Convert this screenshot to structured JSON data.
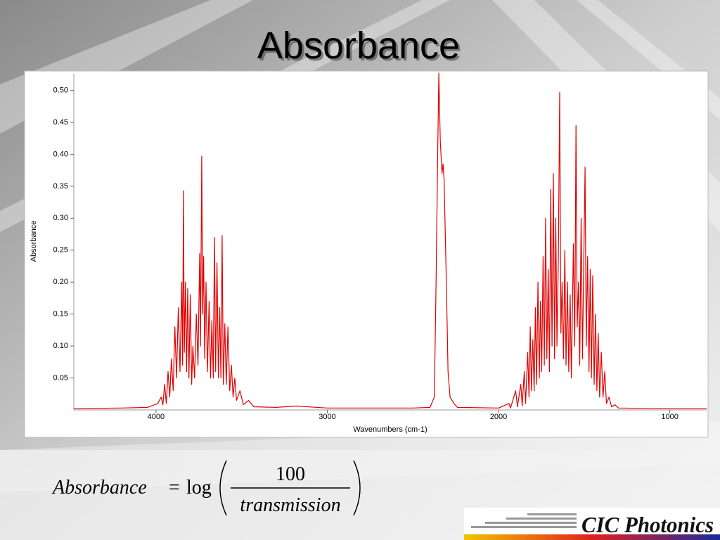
{
  "slide_title": "Absorbance",
  "formula": {
    "lhs": "Absorbance",
    "equals": "=",
    "func": "log",
    "numerator": "100",
    "denominator": "transmission"
  },
  "logo": "CIC Photonics",
  "chart_data": {
    "type": "line",
    "xlabel": "Wavenumbers (cm-1)",
    "ylabel": "Absorbance",
    "color": "#e00000",
    "xlim": [
      4480,
      785
    ],
    "ylim": [
      0,
      0.527
    ],
    "xticks": [
      4000,
      3000,
      2000,
      1000
    ],
    "yticks": [
      {
        "value": 0.05,
        "label": "0.05"
      },
      {
        "value": 0.1,
        "label": "0.10"
      },
      {
        "value": 0.15,
        "label": "0.15"
      },
      {
        "value": 0.2,
        "label": "0.20"
      },
      {
        "value": 0.25,
        "label": "0.25"
      },
      {
        "value": 0.3,
        "label": "0.30"
      },
      {
        "value": 0.35,
        "label": "0.35"
      },
      {
        "value": 0.4,
        "label": "0.40"
      },
      {
        "value": 0.45,
        "label": "0.45"
      },
      {
        "value": 0.5,
        "label": "0.50"
      }
    ],
    "x": [
      4480,
      4200,
      4050,
      3990,
      3970,
      3960,
      3950,
      3940,
      3930,
      3920,
      3910,
      3900,
      3890,
      3880,
      3870,
      3860,
      3850,
      3845,
      3840,
      3835,
      3828,
      3822,
      3815,
      3808,
      3800,
      3792,
      3785,
      3775,
      3765,
      3755,
      3745,
      3740,
      3733,
      3728,
      3722,
      3716,
      3708,
      3700,
      3690,
      3682,
      3674,
      3666,
      3659,
      3652,
      3644,
      3636,
      3628,
      3621,
      3614,
      3607,
      3598,
      3590,
      3580,
      3570,
      3560,
      3550,
      3540,
      3530,
      3510,
      3490,
      3460,
      3430,
      3300,
      3180,
      3000,
      2500,
      2400,
      2375,
      2365,
      2355,
      2349,
      2340,
      2330,
      2324,
      2318,
      2305,
      2295,
      2283,
      2260,
      2240,
      2000,
      1940,
      1930,
      1900,
      1890,
      1870,
      1862,
      1850,
      1842,
      1830,
      1822,
      1815,
      1808,
      1800,
      1792,
      1785,
      1778,
      1770,
      1762,
      1755,
      1748,
      1740,
      1733,
      1725,
      1718,
      1710,
      1703,
      1695,
      1688,
      1680,
      1673,
      1666,
      1659,
      1651,
      1643,
      1636,
      1629,
      1621,
      1613,
      1606,
      1598,
      1590,
      1582,
      1575,
      1563,
      1555,
      1548,
      1541,
      1533,
      1526,
      1518,
      1510,
      1495,
      1488,
      1480,
      1472,
      1465,
      1458,
      1450,
      1442,
      1434,
      1426,
      1418,
      1410,
      1400,
      1390,
      1380,
      1370,
      1355,
      1340,
      1320,
      1300,
      1000,
      785
    ],
    "values": [
      0.002,
      0.003,
      0.004,
      0.01,
      0.02,
      0.008,
      0.04,
      0.01,
      0.06,
      0.02,
      0.08,
      0.03,
      0.13,
      0.05,
      0.16,
      0.06,
      0.2,
      0.07,
      0.343,
      0.09,
      0.2,
      0.06,
      0.19,
      0.05,
      0.18,
      0.04,
      0.1,
      0.05,
      0.15,
      0.07,
      0.245,
      0.1,
      0.397,
      0.15,
      0.24,
      0.08,
      0.2,
      0.06,
      0.17,
      0.05,
      0.14,
      0.05,
      0.27,
      0.06,
      0.23,
      0.05,
      0.16,
      0.05,
      0.273,
      0.04,
      0.135,
      0.04,
      0.13,
      0.03,
      0.07,
      0.02,
      0.05,
      0.015,
      0.03,
      0.008,
      0.015,
      0.005,
      0.004,
      0.006,
      0.003,
      0.003,
      0.004,
      0.02,
      0.2,
      0.41,
      0.527,
      0.42,
      0.37,
      0.385,
      0.36,
      0.2,
      0.06,
      0.02,
      0.01,
      0.004,
      0.003,
      0.01,
      0.003,
      0.03,
      0.005,
      0.04,
      0.006,
      0.06,
      0.01,
      0.09,
      0.02,
      0.13,
      0.03,
      0.11,
      0.03,
      0.16,
      0.04,
      0.2,
      0.05,
      0.17,
      0.06,
      0.24,
      0.07,
      0.3,
      0.08,
      0.22,
      0.06,
      0.345,
      0.1,
      0.37,
      0.08,
      0.3,
      0.1,
      0.24,
      0.497,
      0.12,
      0.2,
      0.08,
      0.25,
      0.07,
      0.2,
      0.06,
      0.18,
      0.05,
      0.26,
      0.1,
      0.445,
      0.13,
      0.2,
      0.07,
      0.3,
      0.08,
      0.38,
      0.1,
      0.24,
      0.06,
      0.22,
      0.05,
      0.21,
      0.04,
      0.15,
      0.03,
      0.12,
      0.02,
      0.09,
      0.02,
      0.06,
      0.01,
      0.02,
      0.005,
      0.008,
      0.003,
      0.002,
      0.002
    ]
  }
}
